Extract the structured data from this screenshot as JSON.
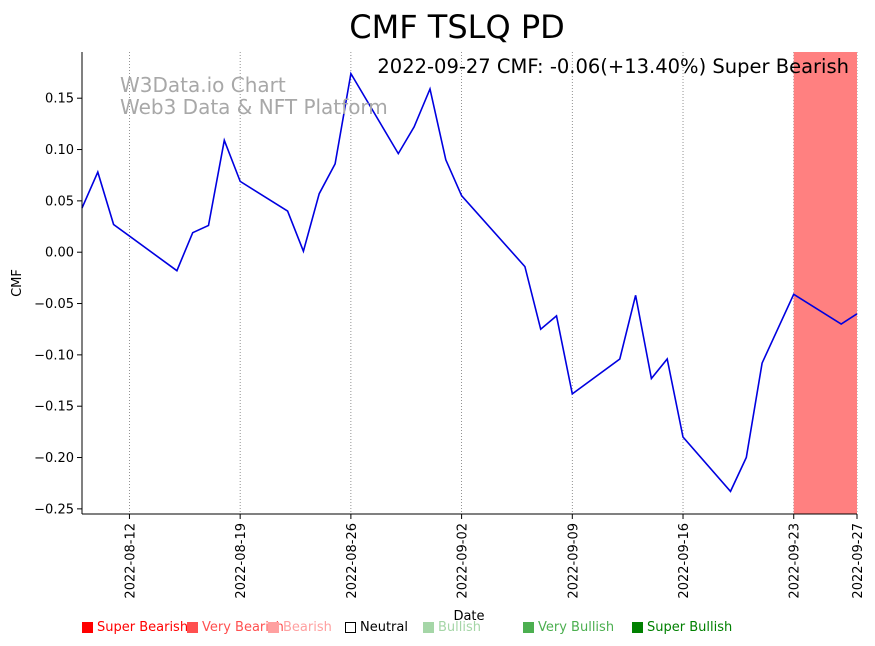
{
  "chart_data": {
    "type": "line",
    "title": "CMF TSLQ PD",
    "subtitle": "2022-09-27 CMF: -0.06(+13.40%) Super Bearish",
    "watermark": [
      "W3Data.io Chart",
      "Web3 Data & NFT Platform"
    ],
    "xlabel": "Date",
    "ylabel": "CMF",
    "xlim": [
      "2022-08-09",
      "2022-09-27"
    ],
    "ylim": [
      -0.255,
      0.195
    ],
    "yticks": [
      0.15,
      0.1,
      0.05,
      0.0,
      -0.05,
      -0.1,
      -0.15,
      -0.2,
      -0.25
    ],
    "ytick_labels": [
      "0.15",
      "0.10",
      "0.05",
      "0.00",
      "−0.05",
      "−0.10",
      "−0.15",
      "−0.20",
      "−0.25"
    ],
    "xticks": [
      "2022-08-12",
      "2022-08-19",
      "2022-08-26",
      "2022-09-02",
      "2022-09-09",
      "2022-09-16",
      "2022-09-23",
      "2022-09-27"
    ],
    "grid": "x-dotted",
    "line_color": "#0000e0",
    "highlight": {
      "start": "2022-09-23",
      "end": "2022-09-27",
      "color": "#ff8080",
      "label": "Super Bearish"
    },
    "series": [
      {
        "name": "CMF",
        "x": [
          "2022-08-09",
          "2022-08-10",
          "2022-08-11",
          "2022-08-15",
          "2022-08-16",
          "2022-08-17",
          "2022-08-18",
          "2022-08-19",
          "2022-08-22",
          "2022-08-23",
          "2022-08-24",
          "2022-08-25",
          "2022-08-26",
          "2022-08-29",
          "2022-08-30",
          "2022-08-31",
          "2022-09-01",
          "2022-09-02",
          "2022-09-06",
          "2022-09-07",
          "2022-09-08",
          "2022-09-09",
          "2022-09-12",
          "2022-09-13",
          "2022-09-14",
          "2022-09-15",
          "2022-09-16",
          "2022-09-19",
          "2022-09-20",
          "2022-09-21",
          "2022-09-23",
          "2022-09-26",
          "2022-09-27"
        ],
        "values": [
          0.043,
          0.078,
          0.027,
          -0.018,
          0.019,
          0.026,
          0.109,
          0.069,
          0.04,
          0.001,
          0.057,
          0.086,
          0.174,
          0.096,
          0.122,
          0.159,
          0.09,
          0.055,
          -0.014,
          -0.075,
          -0.062,
          -0.138,
          -0.104,
          -0.042,
          -0.123,
          -0.104,
          -0.18,
          -0.233,
          -0.2,
          -0.108,
          -0.041,
          -0.07,
          -0.06
        ]
      }
    ]
  },
  "legend": {
    "items": [
      {
        "label": "Super Bearish",
        "color": "#ff0000",
        "text_color": "#ff0000",
        "filled": true
      },
      {
        "label": "Very Bearish",
        "color": "#ff4f4f",
        "text_color": "#ff4f4f",
        "filled": true
      },
      {
        "label": "Bearish",
        "color": "#ffa0a0",
        "text_color": "#ffa0a0",
        "filled": true
      },
      {
        "label": "Neutral",
        "color": "#000000",
        "text_color": "#000000",
        "filled": false
      },
      {
        "label": "Bullish",
        "color": "#a5d6a7",
        "text_color": "#a5d6a7",
        "filled": true
      },
      {
        "label": "Very Bullish",
        "color": "#4caf50",
        "text_color": "#4caf50",
        "filled": true
      },
      {
        "label": "Super Bullish",
        "color": "#008000",
        "text_color": "#008000",
        "filled": true
      }
    ]
  }
}
